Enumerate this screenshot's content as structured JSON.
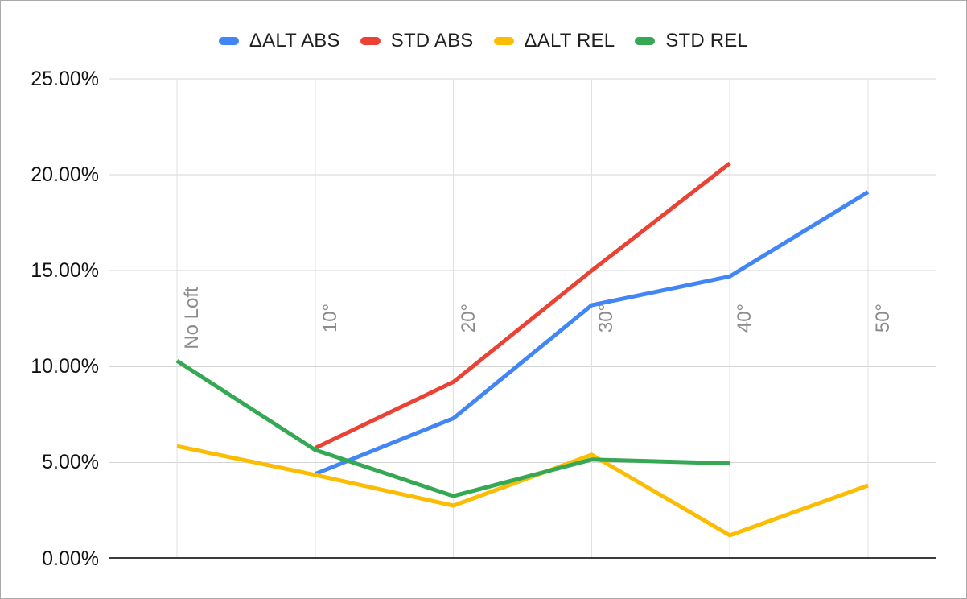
{
  "chart_data": {
    "type": "line",
    "title": "",
    "categories": [
      "No Loft",
      "10°",
      "20°",
      "30°",
      "40°",
      "50°"
    ],
    "series": [
      {
        "name": "ΔALT ABS",
        "slug": "delta-alt-abs",
        "color": "#4285F4",
        "values": [
          null,
          4.4,
          7.3,
          13.2,
          14.7,
          19.1
        ]
      },
      {
        "name": "STD ABS",
        "slug": "std-abs",
        "color": "#EA4335",
        "values": [
          null,
          5.75,
          9.2,
          15.0,
          20.6,
          null
        ]
      },
      {
        "name": "ΔALT REL",
        "slug": "delta-alt-rel",
        "color": "#FBBC04",
        "values": [
          5.85,
          4.35,
          2.75,
          5.4,
          1.2,
          3.8
        ]
      },
      {
        "name": "STD REL",
        "slug": "std-rel",
        "color": "#34A853",
        "values": [
          10.3,
          5.65,
          3.25,
          5.15,
          4.95,
          null
        ]
      }
    ],
    "unit": "%",
    "y_axis": {
      "min": 0,
      "max": 25,
      "step": 5,
      "tick_labels": [
        "0.00%",
        "5.00%",
        "10.00%",
        "15.00%",
        "20.00%",
        "25.00%"
      ]
    },
    "x_axis": {
      "label_rotation_deg": -90
    },
    "grid": true,
    "legend_position": "top",
    "line_width": 5,
    "colors": {
      "background": "#ffffff",
      "frame_border": "#a9a9a9",
      "grid_horizontal": "#d4d4d4",
      "grid_vertical": "#e1e1e1",
      "axis_line": "#3b3b3b",
      "y_tick_text": "#111111",
      "x_tick_text": "#8b8b8b",
      "legend_text": "#1f1f1f"
    }
  }
}
